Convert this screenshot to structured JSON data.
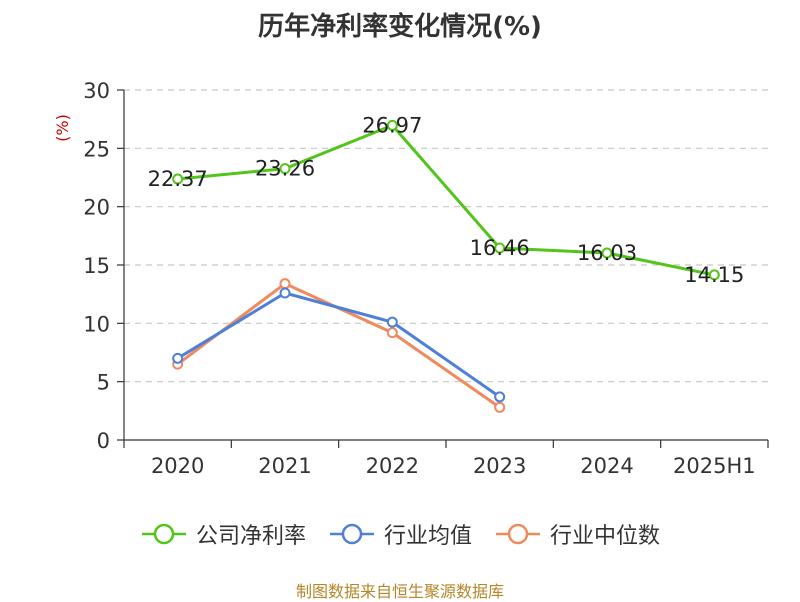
{
  "title": "历年净利率变化情况(%)",
  "source": "制图数据来自恒生聚源数据库",
  "chart_data": {
    "type": "line",
    "title": "历年净利率变化情况(%)",
    "ylabel": "(%)",
    "categories": [
      "2020",
      "2021",
      "2022",
      "2023",
      "2024",
      "2025H1"
    ],
    "ylim": [
      0,
      30
    ],
    "yticks": [
      0,
      5,
      10,
      15,
      20,
      25,
      30
    ],
    "grid": true,
    "legend_position": "bottom",
    "series": [
      {
        "name": "公司净利率",
        "color": "#52c41a",
        "values": [
          22.37,
          23.26,
          26.97,
          16.46,
          16.03,
          14.15
        ],
        "show_labels": true
      },
      {
        "name": "行业均值",
        "color": "#4e7fd9",
        "values": [
          7.0,
          12.6,
          10.1,
          3.7,
          null,
          null
        ],
        "show_labels": false
      },
      {
        "name": "行业中位数",
        "color": "#f08a5d",
        "values": [
          6.5,
          13.4,
          9.2,
          2.8,
          null,
          null
        ],
        "show_labels": false
      }
    ]
  }
}
